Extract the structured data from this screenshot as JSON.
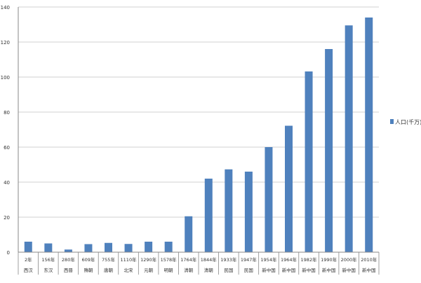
{
  "chart_data": {
    "type": "bar",
    "title": "",
    "xlabel": "",
    "ylabel": "",
    "ylim": [
      0,
      140
    ],
    "yticks": [
      0,
      20,
      40,
      60,
      80,
      100,
      120,
      140
    ],
    "grid": true,
    "legend_position": "right",
    "colors": {
      "bar": "#4f81bd",
      "grid": "#d0d0d0",
      "axis": "#888888",
      "text": "#333333"
    },
    "categories": [
      {
        "year": "2年",
        "dynasty": "西汉"
      },
      {
        "year": "156年",
        "dynasty": "东汉"
      },
      {
        "year": "280年",
        "dynasty": "西晋"
      },
      {
        "year": "609年",
        "dynasty": "隋朝"
      },
      {
        "year": "755年",
        "dynasty": "唐朝"
      },
      {
        "year": "1110年",
        "dynasty": "北宋"
      },
      {
        "year": "1290年",
        "dynasty": "元朝"
      },
      {
        "year": "1578年",
        "dynasty": "明朝"
      },
      {
        "year": "1764年",
        "dynasty": "清朝"
      },
      {
        "year": "1844年",
        "dynasty": "清朝"
      },
      {
        "year": "1933年",
        "dynasty": "民国"
      },
      {
        "year": "1947年",
        "dynasty": "民国"
      },
      {
        "year": "1954年",
        "dynasty": "新中国"
      },
      {
        "year": "1964年",
        "dynasty": "新中国"
      },
      {
        "year": "1982年",
        "dynasty": "新中国"
      },
      {
        "year": "1990年",
        "dynasty": "新中国"
      },
      {
        "year": "2000年",
        "dynasty": "新中国"
      },
      {
        "year": "2010年",
        "dynasty": "新中国"
      }
    ],
    "series": [
      {
        "name": "人口(千万)",
        "values": [
          6,
          5,
          1.5,
          4.6,
          5.3,
          4.7,
          6,
          6,
          20.5,
          42,
          47.3,
          46,
          60,
          72.2,
          103.2,
          116,
          129.5,
          134
        ]
      }
    ]
  }
}
